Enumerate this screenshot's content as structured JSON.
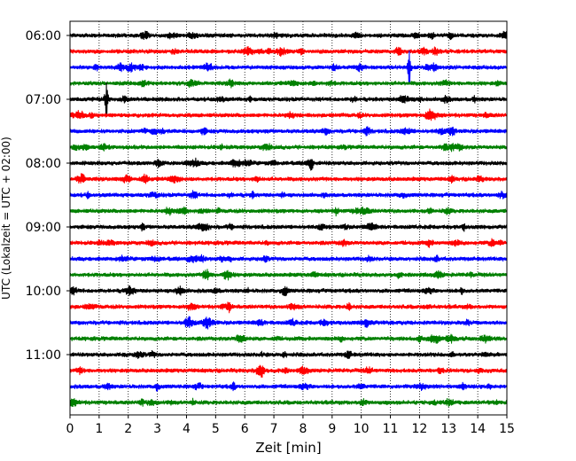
{
  "chart_data": {
    "type": "line",
    "title": "",
    "xlabel": "Zeit  [min]",
    "ylabel": "UTC (Lokalzeit = UTC + 02:00)",
    "xlim": [
      0,
      15
    ],
    "x_ticks": [
      0,
      1,
      2,
      3,
      4,
      5,
      6,
      7,
      8,
      9,
      10,
      11,
      12,
      13,
      14,
      15
    ],
    "vertical_grid": "dotted",
    "y_tick_labels": [
      "06:00",
      "07:00",
      "08:00",
      "09:00",
      "10:00",
      "11:00"
    ],
    "trace_colors": [
      "#000000",
      "#ff0000",
      "#0000ff",
      "#008000"
    ],
    "traces": [
      {
        "start": "06:00",
        "color": "#000000"
      },
      {
        "start": "06:15",
        "color": "#ff0000"
      },
      {
        "start": "06:30",
        "color": "#0000ff",
        "events": [
          {
            "minute": 11.65,
            "amplitude": "large"
          }
        ]
      },
      {
        "start": "06:45",
        "color": "#008000"
      },
      {
        "start": "07:00",
        "color": "#000000",
        "events": [
          {
            "minute": 1.25,
            "amplitude": "large"
          }
        ]
      },
      {
        "start": "07:15",
        "color": "#ff0000"
      },
      {
        "start": "07:30",
        "color": "#0000ff"
      },
      {
        "start": "07:45",
        "color": "#008000"
      },
      {
        "start": "08:00",
        "color": "#000000",
        "events": [
          {
            "minute": 8.3,
            "amplitude": "small"
          }
        ]
      },
      {
        "start": "08:15",
        "color": "#ff0000"
      },
      {
        "start": "08:30",
        "color": "#0000ff"
      },
      {
        "start": "08:45",
        "color": "#008000"
      },
      {
        "start": "09:00",
        "color": "#000000"
      },
      {
        "start": "09:15",
        "color": "#ff0000"
      },
      {
        "start": "09:30",
        "color": "#0000ff"
      },
      {
        "start": "09:45",
        "color": "#008000"
      },
      {
        "start": "10:00",
        "color": "#000000"
      },
      {
        "start": "10:15",
        "color": "#ff0000"
      },
      {
        "start": "10:30",
        "color": "#0000ff"
      },
      {
        "start": "10:45",
        "color": "#008000"
      },
      {
        "start": "11:00",
        "color": "#000000"
      },
      {
        "start": "11:15",
        "color": "#ff0000"
      },
      {
        "start": "11:30",
        "color": "#0000ff"
      },
      {
        "start": "11:45",
        "color": "#008000"
      }
    ]
  }
}
